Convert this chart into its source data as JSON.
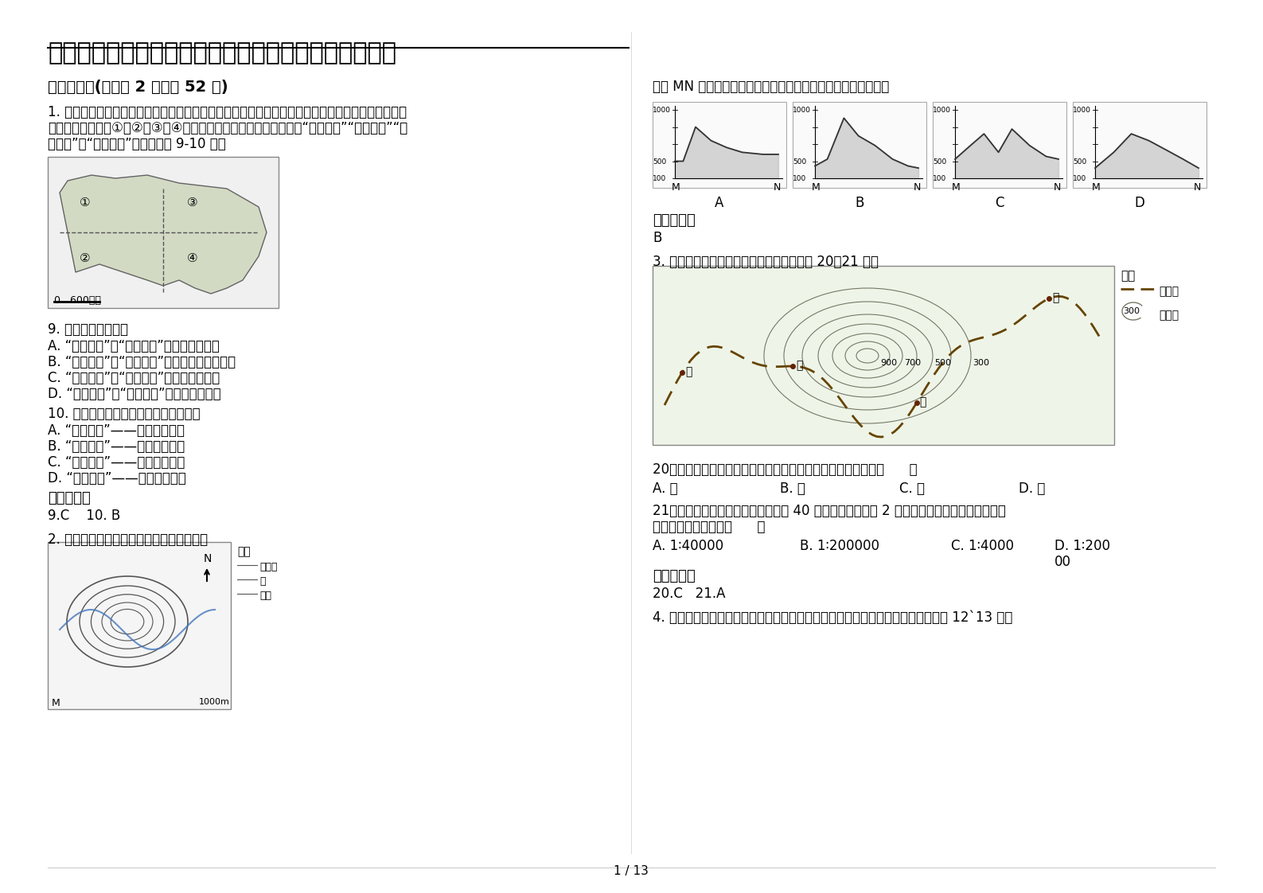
{
  "title": "内蒙古自治区赤峰市市第十中学高三地理测试题含解析",
  "section1": "一、选择题(每小题 2 分，共 52 分)",
  "q1_line1": "1. 德国慕尼黑大学的一位教授是这样看待中国的：他首先把中国分成东部与西部，再分别分成南北两",
  "q1_line2": "部分，形成如下图①、②、③、④四块区域，并将这四块区域命名为“银色中国”“金色中国”“黄",
  "q1_line3": "色中国”和“绿色中国”。据此回答 9-10 题。",
  "q9": "9. 下列说法正确的是",
  "q9a": "A. “银色中国”与“金色中国”以冈底斯山为界",
  "q9b": "B. “金色中国”与“绿色中国”的分界线包括贺兰山",
  "q9c": "C. “黄色中国”与“绿色中国”的分界线为秦岭",
  "q9d": "D. “银色中国”与“绿色中国”的分界线是昆山",
  "q10": "10. 各区域与主要成因的组合，正确的是",
  "q10a": "A. “黄色中国”——海拔高度所致",
  "q10b": "B. “银色中国”——海陆位置影响",
  "q10c": "C. “绿色中国”——流水侵蚀作用",
  "q10d": "D. “银色中国”——纬度位置影响",
  "ans1_label": "参考答案：",
  "ans1": "9.C    10. B",
  "q2_text": "2. 下图为我国某地等高线示意图，读图回答",
  "q_mn_text": "下面 MN 两点之间连线的地形剖面图只有一幅是正确的，该图是",
  "ans_mn_label": "参考答案：",
  "ans_mn": "B",
  "q3_text": "3. 读我国某山区公路规划线路设计图，回答 20～21 题。",
  "q20": "20、图中公路沿线甲、乙、丙、丁四地中，海拔最高点出现在（      ）",
  "q20a": "A. 甲",
  "q20b": "B. 乙",
  "q20c": "C. 丙",
  "q20d": "D. 丁",
  "q21_line1": "21、若乙、丙两点之间的直线距离为 40 千米，要在边长为 2 米的图幅中完整绘制该区域图，",
  "q21_line2": "所选用的比例尺应为（      ）",
  "q21a": "A. 1∶40000",
  "q21b": "B. 1∶200000",
  "q21c": "C. 1∶4000",
  "q21d_line1": "D. 1∶200",
  "q21d_line2": "00",
  "ans2_label": "参考答案：",
  "ans2": "20.C   21.A",
  "q4_text": "4. 下图为一地理科考小组在某山地不同海拔收集到的主要植被叶片。读图，完成第 12`13 题。",
  "page": "1 / 13",
  "bg_color": "#ffffff",
  "text_color": "#000000"
}
